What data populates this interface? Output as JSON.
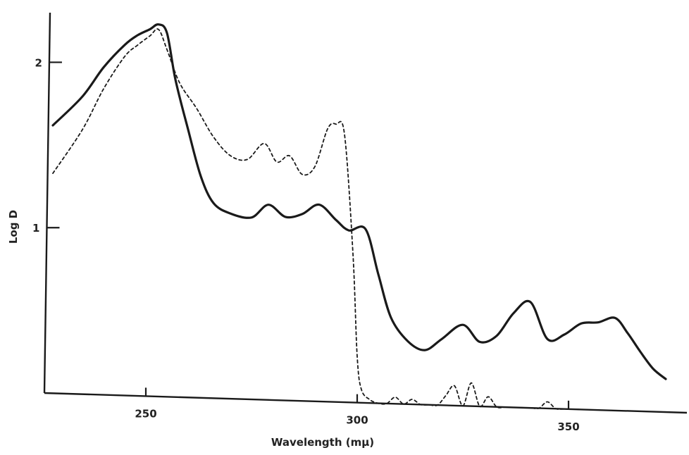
{
  "chart_data": {
    "type": "line",
    "title": "",
    "xlabel": "Wavelength (mμ)",
    "ylabel": "Log D",
    "xlim": [
      226,
      378
    ],
    "ylim": [
      0,
      2.3
    ],
    "xticks": [
      250,
      300,
      350
    ],
    "yticks": [
      1,
      2
    ],
    "grid": false,
    "legend": "none",
    "series": [
      {
        "style": "solid",
        "color": "#1a1a1a",
        "x": [
          228,
          235,
          240,
          245,
          248,
          251,
          253,
          255,
          257,
          260,
          263,
          266,
          270,
          275,
          279,
          283,
          287,
          291,
          295,
          298,
          302,
          305,
          308,
          312,
          316,
          320,
          325,
          329,
          333,
          337,
          341,
          345,
          349,
          353,
          357,
          361,
          364,
          367,
          370,
          373
        ],
        "y": [
          1.62,
          1.8,
          1.98,
          2.12,
          2.18,
          2.22,
          2.25,
          2.2,
          1.92,
          1.62,
          1.34,
          1.18,
          1.12,
          1.1,
          1.18,
          1.11,
          1.13,
          1.19,
          1.1,
          1.04,
          1.05,
          0.78,
          0.52,
          0.38,
          0.33,
          0.4,
          0.49,
          0.39,
          0.43,
          0.57,
          0.64,
          0.42,
          0.45,
          0.52,
          0.53,
          0.56,
          0.47,
          0.36,
          0.26,
          0.2
        ]
      },
      {
        "style": "dashed",
        "color": "#1a1a1a",
        "x": [
          228,
          235,
          240,
          245,
          248,
          251,
          253,
          255,
          258,
          262,
          266,
          270,
          274,
          278,
          281,
          284,
          287,
          290,
          293,
          295,
          297,
          299,
          300,
          301,
          303,
          305,
          307,
          309,
          311,
          313,
          315,
          317,
          319,
          321,
          323,
          325,
          327,
          329,
          331,
          333,
          335,
          337,
          339,
          341,
          343,
          345,
          347,
          349,
          351,
          353
        ],
        "y": [
          1.33,
          1.6,
          1.85,
          2.05,
          2.12,
          2.18,
          2.22,
          2.1,
          1.9,
          1.75,
          1.58,
          1.47,
          1.45,
          1.55,
          1.44,
          1.48,
          1.37,
          1.42,
          1.65,
          1.68,
          1.62,
          0.9,
          0.28,
          0.08,
          0.02,
          0.0,
          0.0,
          0.04,
          0.0,
          0.03,
          0.0,
          0.0,
          0.0,
          0.06,
          0.12,
          0.0,
          0.14,
          0.0,
          0.06,
          0.0,
          0.0,
          0.0,
          0.0,
          0.0,
          0.0,
          0.04,
          0.0,
          0.0,
          0.0,
          0.0
        ]
      }
    ]
  }
}
